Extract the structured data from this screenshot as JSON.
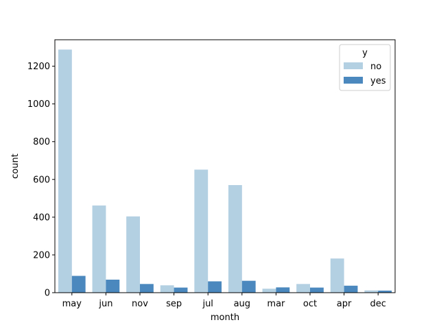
{
  "chart_data": {
    "type": "bar",
    "title": "",
    "xlabel": "month",
    "ylabel": "count",
    "categories": [
      "may",
      "jun",
      "nov",
      "sep",
      "jul",
      "aug",
      "mar",
      "oct",
      "apr",
      "dec"
    ],
    "series": [
      {
        "name": "no",
        "color": "#b3cfe2",
        "values": [
          1288,
          462,
          404,
          39,
          652,
          570,
          21,
          46,
          181,
          12
        ]
      },
      {
        "name": "yes",
        "color": "#4a88bd",
        "values": [
          89,
          69,
          46,
          27,
          60,
          63,
          28,
          27,
          37,
          11
        ]
      }
    ],
    "ylim": [
      0,
      1340
    ],
    "yticks": [
      0,
      200,
      400,
      600,
      800,
      1000,
      1200
    ],
    "grid": false,
    "legend": {
      "title": "y",
      "placement": "top-right"
    }
  }
}
